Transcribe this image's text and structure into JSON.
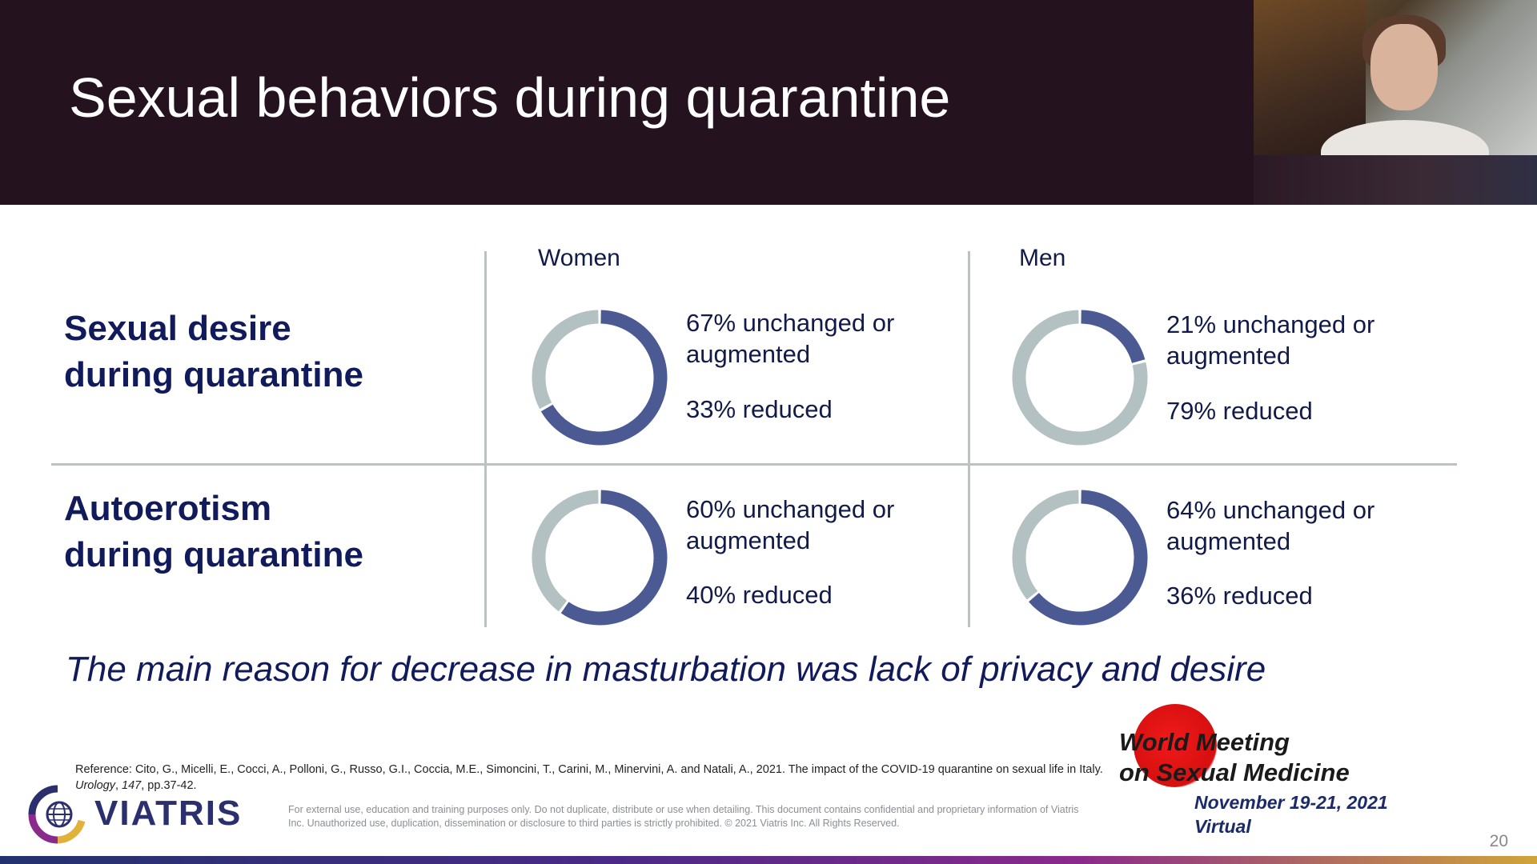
{
  "slide": {
    "title": "Sexual behaviors during quarantine",
    "page_number": "20"
  },
  "colors": {
    "primary": "#4b5a92",
    "secondary": "#b4c1c2",
    "header_bg": "#24121f",
    "text_navy": "#111a5a"
  },
  "chart_data": [
    {
      "type": "pie",
      "donut": true,
      "row": "Sexual desire during quarantine",
      "column": "Women",
      "labels": [
        "unchanged or augmented",
        "reduced"
      ],
      "values": [
        67,
        33
      ]
    },
    {
      "type": "pie",
      "donut": true,
      "row": "Sexual desire during quarantine",
      "column": "Men",
      "labels": [
        "unchanged or augmented",
        "reduced"
      ],
      "values": [
        21,
        79
      ]
    },
    {
      "type": "pie",
      "donut": true,
      "row": "Autoerotism during quarantine",
      "column": "Women",
      "labels": [
        "unchanged or augmented",
        "reduced"
      ],
      "values": [
        60,
        40
      ]
    },
    {
      "type": "pie",
      "donut": true,
      "row": "Autoerotism during quarantine",
      "column": "Men",
      "labels": [
        "unchanged or augmented",
        "reduced"
      ],
      "values": [
        64,
        36
      ]
    }
  ],
  "table": {
    "columns": [
      "Women",
      "Men"
    ],
    "rows": [
      {
        "label_line1": "Sexual desire",
        "label_line2": "during quarantine",
        "cells": [
          {
            "stat1_line1": "67% unchanged or",
            "stat1_line2": "augmented",
            "stat2": "33% reduced"
          },
          {
            "stat1_line1": "21% unchanged or",
            "stat1_line2": "augmented",
            "stat2": "79% reduced"
          }
        ]
      },
      {
        "label_line1": "Autoerotism",
        "label_line2": "during quarantine",
        "cells": [
          {
            "stat1_line1": "60% unchanged or",
            "stat1_line2": "augmented",
            "stat2": "40% reduced"
          },
          {
            "stat1_line1": "64% unchanged or",
            "stat1_line2": "augmented",
            "stat2": "36% reduced"
          }
        ]
      }
    ]
  },
  "conclusion": "The main reason for decrease in masturbation was lack of privacy and desire",
  "reference": {
    "text_a": "Reference: Cito, G., Micelli, E., Cocci, A., Polloni, G., Russo, G.I., Coccia, M.E., Simoncini, T., Carini, M., Minervini, A. and Natali, A., 2021. The impact of the COVID-19 quarantine on sexual life in Italy. ",
    "journal": "Urology",
    "comma": ", ",
    "volume": "147",
    "pages": ", pp.37-42."
  },
  "disclaimer": "For external use, education and training purposes only. Do not duplicate, distribute or use when detailing. This document contains confidential and proprietary information of Viatris Inc. Unauthorized use, duplication, dissemination or disclosure to third parties is strictly prohibited. © 2021 Viatris Inc. All Rights Reserved.",
  "brand": {
    "logo_text": "VIATRIS",
    "logo_icon": "viatris-globe-icon"
  },
  "event": {
    "line1": "World Meeting",
    "line2": "on Sexual Medicine",
    "dates": "November 19-21, 2021",
    "format": "Virtual"
  }
}
